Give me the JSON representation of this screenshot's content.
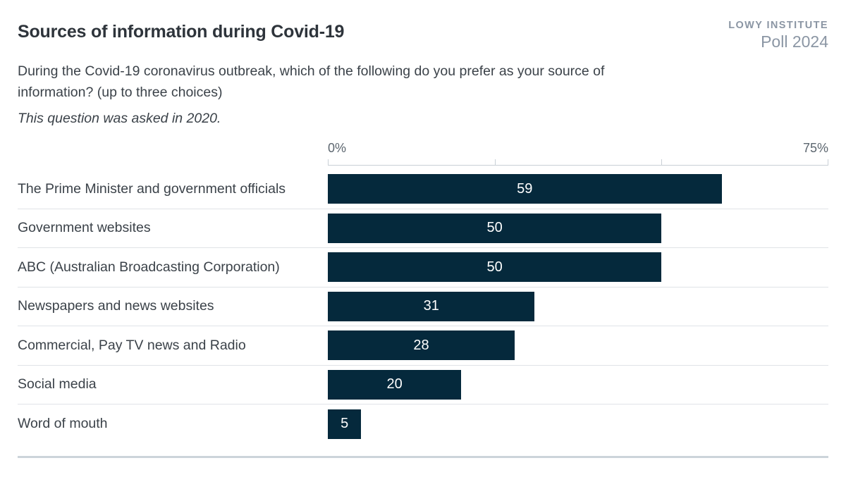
{
  "logo": {
    "line1": "LOWY INSTITUTE",
    "line2": "Poll 2024",
    "color": "#8b96a4"
  },
  "chart_data": {
    "type": "bar",
    "orientation": "horizontal",
    "title": "Sources of information during Covid-19",
    "subtitle": "During the Covid-19 coronavirus outbreak, which of the following do you prefer as your source of information? (up to three choices)",
    "note": "This question was asked in 2020.",
    "categories": [
      "The Prime Minister and government officials",
      "Government websites",
      "ABC (Australian Broadcasting Corporation)",
      "Newspapers and news websites",
      "Commercial, Pay TV news and Radio",
      "Social media",
      "Word of mouth"
    ],
    "values": [
      59,
      50,
      50,
      31,
      28,
      20,
      5
    ],
    "xlim": [
      0,
      75
    ],
    "ticks": [
      0,
      25,
      50,
      75
    ],
    "x_axis": {
      "min_label": "0%",
      "max_label": "75%"
    },
    "grid": false,
    "legend": "none",
    "bar_color": "#05293c",
    "value_label_color": "#ffffff",
    "separator_color": "#e0e3e7"
  }
}
